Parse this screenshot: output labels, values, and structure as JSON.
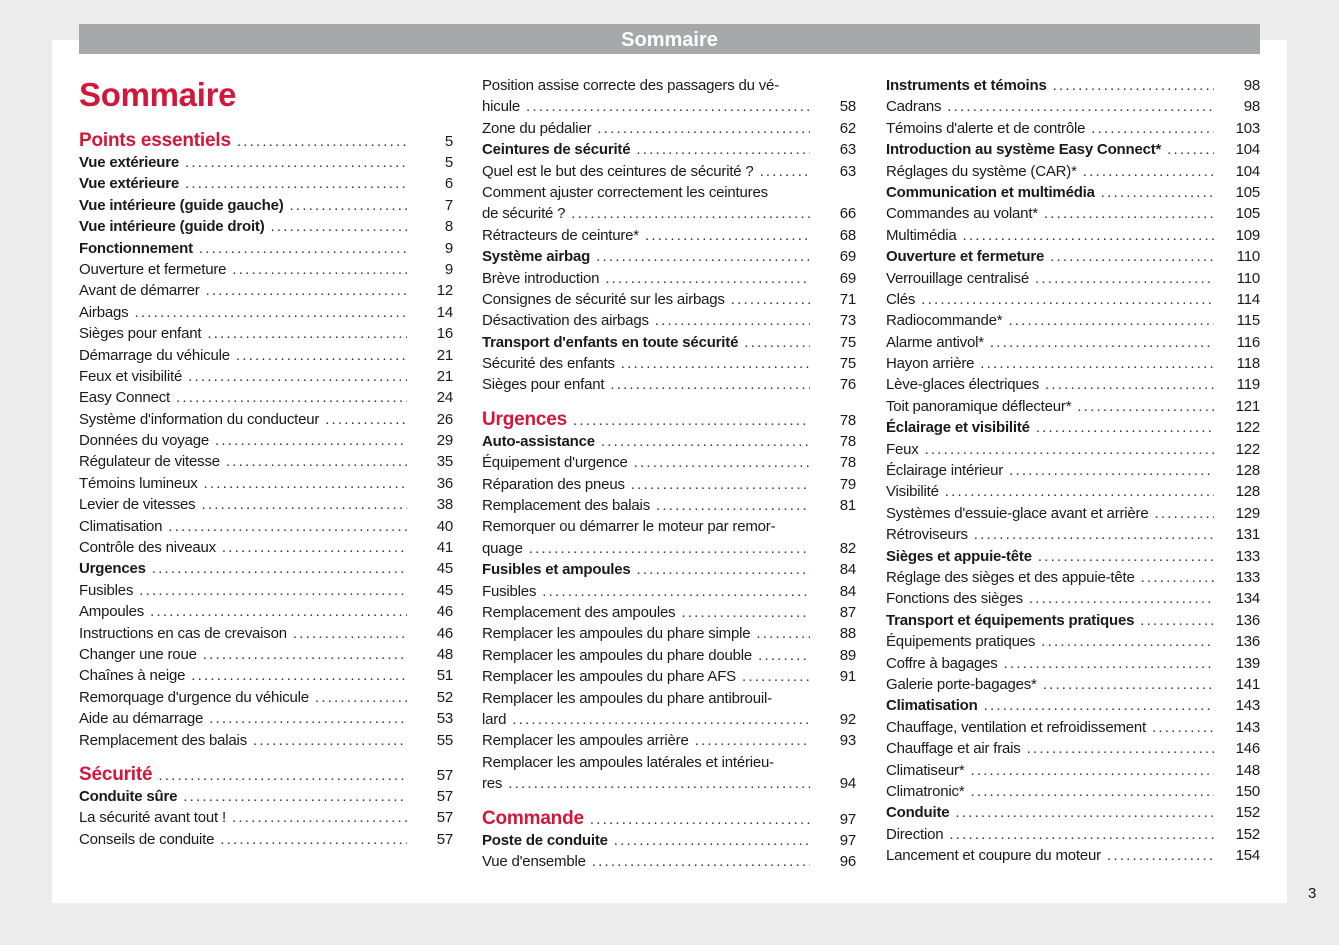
{
  "header": "Sommaire",
  "title": "Sommaire",
  "page_number": "3",
  "columns": [
    [
      {
        "t": "Points essentiels",
        "p": "5",
        "k": "s"
      },
      {
        "t": "Vue extérieure",
        "p": "5",
        "k": "b"
      },
      {
        "t": "Vue extérieure",
        "p": "6",
        "k": "b"
      },
      {
        "t": "Vue intérieure (guide gauche)",
        "p": "7",
        "k": "b"
      },
      {
        "t": "Vue intérieure (guide droit)",
        "p": "8",
        "k": "b"
      },
      {
        "t": "Fonctionnement",
        "p": "9",
        "k": "b"
      },
      {
        "t": "Ouverture et fermeture",
        "p": "9"
      },
      {
        "t": "Avant de démarrer",
        "p": "12"
      },
      {
        "t": "Airbags",
        "p": "14"
      },
      {
        "t": "Sièges pour enfant",
        "p": "16"
      },
      {
        "t": "Démarrage du véhicule",
        "p": "21"
      },
      {
        "t": "Feux et visibilité",
        "p": "21"
      },
      {
        "t": "Easy Connect",
        "p": "24"
      },
      {
        "t": "Système d'information du conducteur",
        "p": "26"
      },
      {
        "t": "Données du voyage",
        "p": "29"
      },
      {
        "t": "Régulateur de vitesse",
        "p": "35"
      },
      {
        "t": "Témoins lumineux",
        "p": "36"
      },
      {
        "t": "Levier de vitesses",
        "p": "38"
      },
      {
        "t": "Climatisation",
        "p": "40"
      },
      {
        "t": "Contrôle des niveaux",
        "p": "41"
      },
      {
        "t": "Urgences",
        "p": "45",
        "k": "b"
      },
      {
        "t": "Fusibles",
        "p": "45"
      },
      {
        "t": "Ampoules",
        "p": "46"
      },
      {
        "t": "Instructions en cas de crevaison",
        "p": "46"
      },
      {
        "t": "Changer une roue",
        "p": "48"
      },
      {
        "t": "Chaînes à neige",
        "p": "51"
      },
      {
        "t": "Remorquage d'urgence du véhicule",
        "p": "52"
      },
      {
        "t": "Aide au démarrage",
        "p": "53"
      },
      {
        "t": "Remplacement des balais",
        "p": "55"
      },
      {
        "t": "Sécurité",
        "p": "57",
        "k": "s"
      },
      {
        "t": "Conduite sûre",
        "p": "57",
        "k": "b"
      },
      {
        "t": "La sécurité avant tout !",
        "p": "57"
      },
      {
        "t": "Conseils de conduite",
        "p": "57"
      }
    ],
    [
      {
        "l1": "Position assise correcte des passagers du vé-",
        "t": "hicule",
        "p": "58"
      },
      {
        "t": "Zone du pédalier",
        "p": "62"
      },
      {
        "t": "Ceintures de sécurité",
        "p": "63",
        "k": "b"
      },
      {
        "t": "Quel est le but des ceintures de sécurité ?",
        "p": "63"
      },
      {
        "l1": "Comment ajuster correctement les ceintures",
        "t": "de sécurité ?",
        "p": "66"
      },
      {
        "t": "Rétracteurs de ceinture*",
        "p": "68"
      },
      {
        "t": "Système airbag",
        "p": "69",
        "k": "b"
      },
      {
        "t": "Brève introduction",
        "p": "69"
      },
      {
        "t": "Consignes de sécurité sur les airbags",
        "p": "71"
      },
      {
        "t": "Désactivation des airbags",
        "p": "73"
      },
      {
        "t": "Transport d'enfants en toute sécurité",
        "p": "75",
        "k": "b"
      },
      {
        "t": "Sécurité des enfants",
        "p": "75"
      },
      {
        "t": "Sièges pour enfant",
        "p": "76"
      },
      {
        "t": "Urgences",
        "p": "78",
        "k": "s"
      },
      {
        "t": "Auto-assistance",
        "p": "78",
        "k": "b"
      },
      {
        "t": "Équipement d'urgence",
        "p": "78"
      },
      {
        "t": "Réparation des pneus",
        "p": "79"
      },
      {
        "t": "Remplacement des balais",
        "p": "81"
      },
      {
        "l1": "Remorquer ou démarrer le moteur par remor-",
        "t": "quage",
        "p": "82"
      },
      {
        "t": "Fusibles et ampoules",
        "p": "84",
        "k": "b"
      },
      {
        "t": "Fusibles",
        "p": "84"
      },
      {
        "t": "Remplacement des ampoules",
        "p": "87"
      },
      {
        "t": "Remplacer les ampoules du phare simple",
        "p": "88"
      },
      {
        "t": "Remplacer les ampoules du phare double",
        "p": "89"
      },
      {
        "t": "Remplacer les ampoules du phare AFS",
        "p": "91"
      },
      {
        "l1": "Remplacer les ampoules du phare antibrouil-",
        "t": "lard",
        "p": "92"
      },
      {
        "t": "Remplacer les ampoules arrière",
        "p": "93"
      },
      {
        "l1": "Remplacer les ampoules latérales et intérieu-",
        "t": "res",
        "p": "94"
      },
      {
        "t": "Commande",
        "p": "97",
        "k": "s"
      },
      {
        "t": "Poste de conduite",
        "p": "97",
        "k": "b"
      },
      {
        "t": "Vue d'ensemble",
        "p": "96"
      }
    ],
    [
      {
        "t": "Instruments et témoins",
        "p": "98",
        "k": "b"
      },
      {
        "t": "Cadrans",
        "p": "98"
      },
      {
        "t": "Témoins d'alerte et de contrôle",
        "p": "103"
      },
      {
        "t": "Introduction au système Easy Connect*",
        "p": "104",
        "k": "b"
      },
      {
        "t": "Réglages du système (CAR)*",
        "p": "104"
      },
      {
        "t": "Communication et multimédia",
        "p": "105",
        "k": "b"
      },
      {
        "t": "Commandes au volant*",
        "p": "105"
      },
      {
        "t": "Multimédia",
        "p": "109"
      },
      {
        "t": "Ouverture et fermeture",
        "p": "110",
        "k": "b"
      },
      {
        "t": "Verrouillage centralisé",
        "p": "110"
      },
      {
        "t": "Clés",
        "p": "114"
      },
      {
        "t": "Radiocommande*",
        "p": "115"
      },
      {
        "t": "Alarme antivol*",
        "p": "116"
      },
      {
        "t": "Hayon arrière",
        "p": "118"
      },
      {
        "t": "Lève-glaces électriques",
        "p": "119"
      },
      {
        "t": "Toit panoramique déflecteur*",
        "p": "121"
      },
      {
        "t": "Éclairage et visibilité",
        "p": "122",
        "k": "b"
      },
      {
        "t": "Feux",
        "p": "122"
      },
      {
        "t": "Éclairage intérieur",
        "p": "128"
      },
      {
        "t": "Visibilité",
        "p": "128"
      },
      {
        "t": "Systèmes d'essuie-glace avant et arrière",
        "p": "129"
      },
      {
        "t": "Rétroviseurs",
        "p": "131"
      },
      {
        "t": "Sièges et appuie-tête",
        "p": "133",
        "k": "b"
      },
      {
        "t": "Réglage des sièges et des appuie-tête",
        "p": "133"
      },
      {
        "t": "Fonctions des sièges",
        "p": "134"
      },
      {
        "t": "Transport et équipements pratiques",
        "p": "136",
        "k": "b"
      },
      {
        "t": "Équipements pratiques",
        "p": "136"
      },
      {
        "t": "Coffre à bagages",
        "p": "139"
      },
      {
        "t": "Galerie porte-bagages*",
        "p": "141"
      },
      {
        "t": "Climatisation",
        "p": "143",
        "k": "b"
      },
      {
        "t": "Chauffage, ventilation et refroidissement",
        "p": "143"
      },
      {
        "t": "Chauffage et air frais",
        "p": "146"
      },
      {
        "t": "Climatiseur*",
        "p": "148"
      },
      {
        "t": "Climatronic*",
        "p": "150"
      },
      {
        "t": "Conduite",
        "p": "152",
        "k": "b"
      },
      {
        "t": "Direction",
        "p": "152"
      },
      {
        "t": "Lancement et coupure du moteur",
        "p": "154"
      }
    ]
  ]
}
